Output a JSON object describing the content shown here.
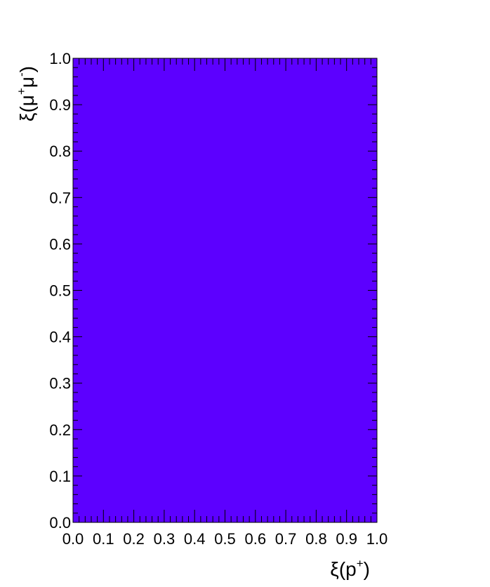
{
  "chart_data": {
    "type": "heatmap",
    "title": "",
    "xlabel": {
      "base": "ξ(p",
      "sup": "+",
      "close": ")"
    },
    "ylabel": {
      "base": "ξ(μ",
      "sup1": "+",
      "mid": "μ",
      "sup2": "-",
      "close": ")"
    },
    "xlim": [
      0.0,
      1.0
    ],
    "ylim": [
      0.0,
      1.0
    ],
    "x_ticks": [
      "0.0",
      "0.1",
      "0.2",
      "0.3",
      "0.4",
      "0.5",
      "0.6",
      "0.7",
      "0.8",
      "0.9",
      "1.0"
    ],
    "y_ticks": [
      "0.0",
      "0.1",
      "0.2",
      "0.3",
      "0.4",
      "0.5",
      "0.6",
      "0.7",
      "0.8",
      "0.9",
      "1.0"
    ],
    "grid": false,
    "cells": [
      {
        "x_range": [
          0.0,
          1.0
        ],
        "y_range": [
          0.0,
          1.0
        ],
        "color": "#5c00ff"
      }
    ]
  }
}
